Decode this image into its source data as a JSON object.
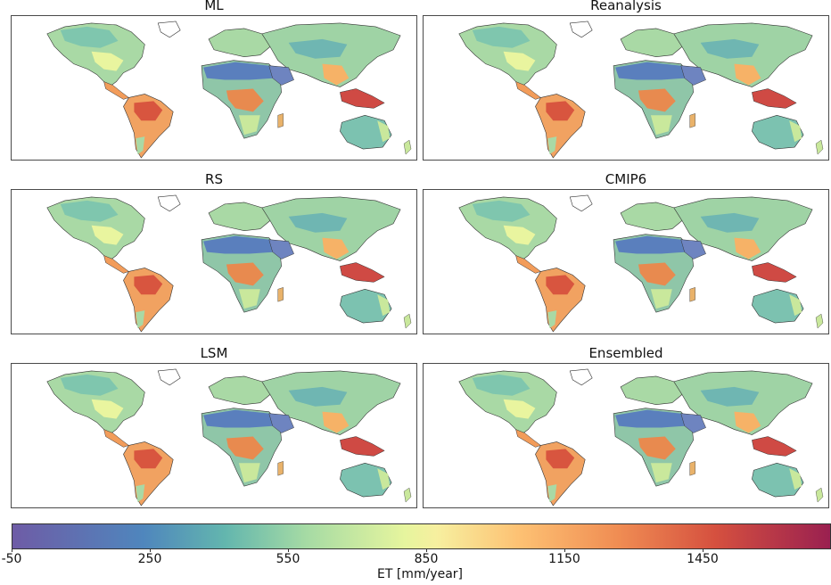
{
  "panels": [
    {
      "title": "ML"
    },
    {
      "title": "Reanalysis"
    },
    {
      "title": "RS"
    },
    {
      "title": "CMIP6"
    },
    {
      "title": "LSM"
    },
    {
      "title": "Ensembled"
    }
  ],
  "colorbar": {
    "label": "ET [mm/year]",
    "ticks": [
      "-50",
      "250",
      "550",
      "850",
      "1150",
      "1450"
    ],
    "colors": [
      "#6e5ca6",
      "#4f86bd",
      "#63b6ae",
      "#a6dba4",
      "#e6f59e",
      "#fdc173",
      "#f08d53",
      "#d5503f",
      "#9a2050"
    ]
  }
}
